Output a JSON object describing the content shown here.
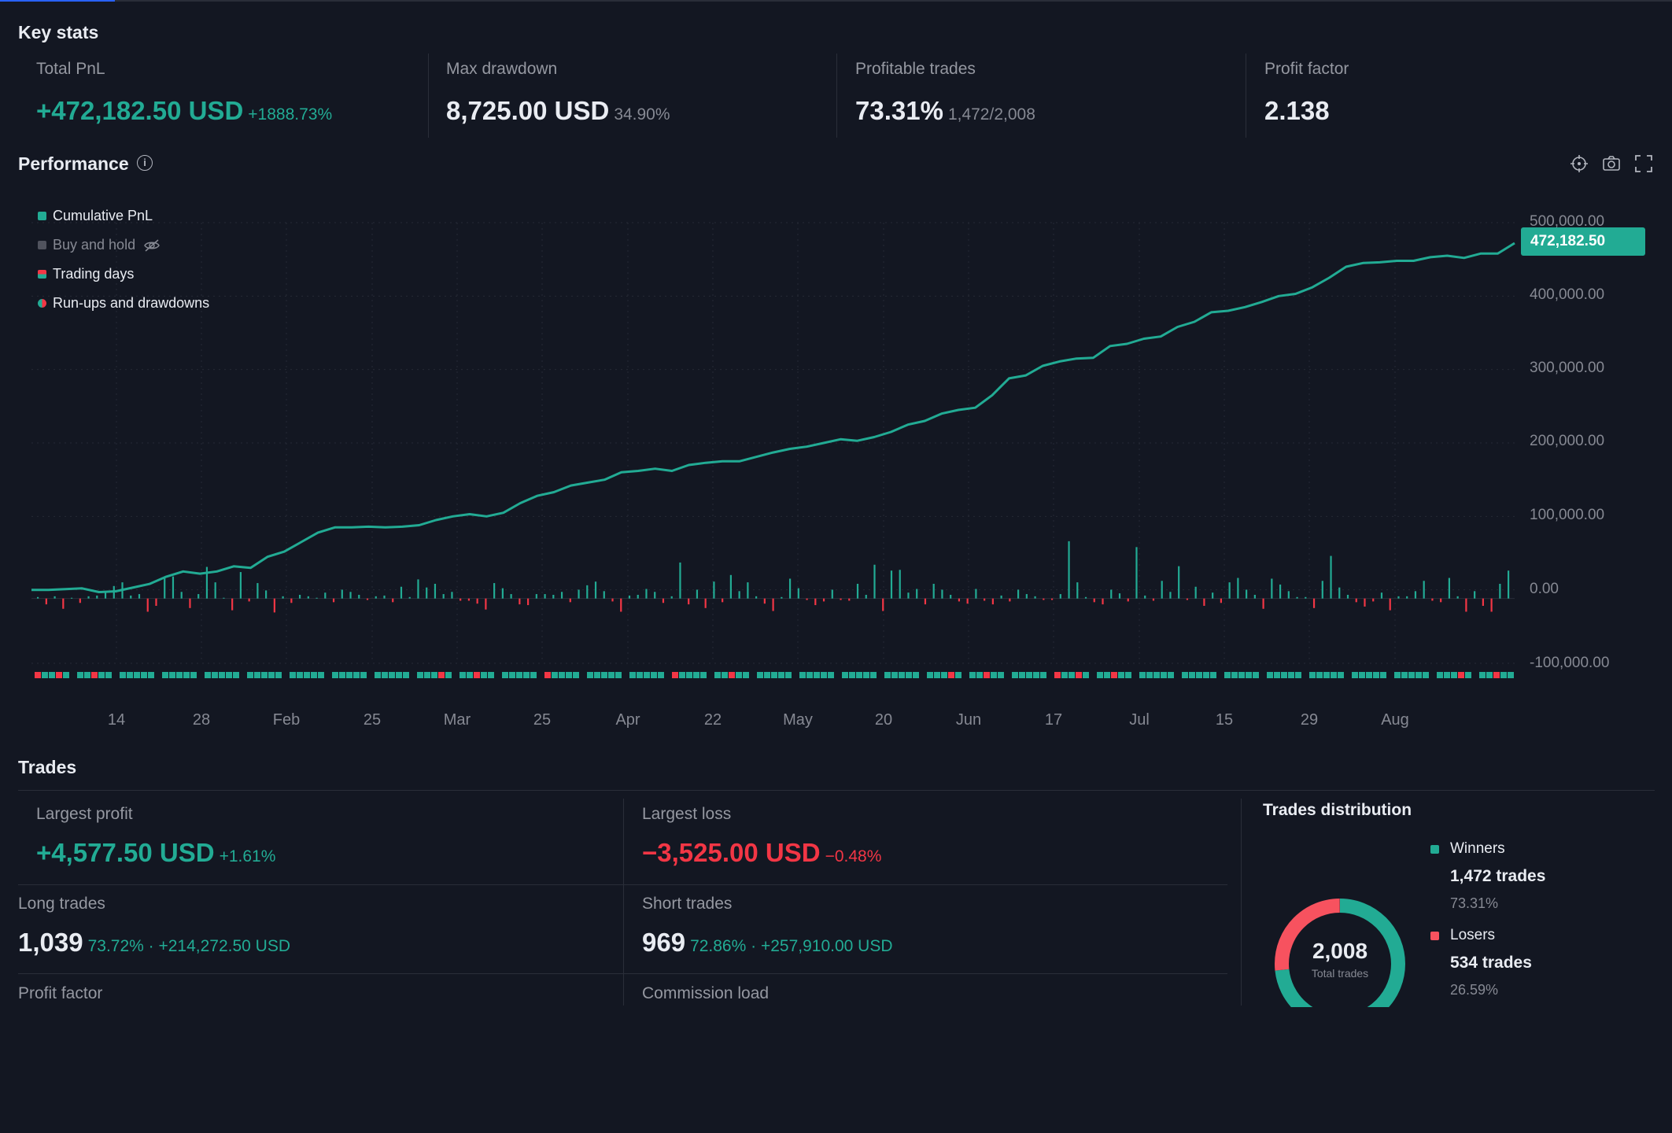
{
  "colors": {
    "accent": "#22ab94",
    "loss": "#f23645",
    "bg": "#131722",
    "grid": "#2a2e39"
  },
  "key_stats": {
    "title": "Key stats",
    "total_pnl": {
      "label": "Total PnL",
      "value": "+472,182.50 USD",
      "sub": "+1888.73%"
    },
    "max_drawdown": {
      "label": "Max drawdown",
      "value": "8,725.00 USD",
      "sub": "34.90%"
    },
    "profitable_trades": {
      "label": "Profitable trades",
      "value": "73.31%",
      "sub": "1,472/2,008"
    },
    "profit_factor": {
      "label": "Profit factor",
      "value": "2.138"
    }
  },
  "performance": {
    "title": "Performance",
    "info_icon": "info-icon",
    "tools": [
      "crosshair-icon",
      "camera-icon",
      "fullscreen-icon"
    ],
    "legend": [
      {
        "label": "Cumulative PnL",
        "color": "#22ab94",
        "hidden": false
      },
      {
        "label": "Buy and hold",
        "color": "#50535e",
        "hidden": true,
        "icon": "eye-off-icon"
      },
      {
        "label": "Trading days",
        "color": "split",
        "hidden": false
      },
      {
        "label": "Run-ups and drawdowns",
        "color": "split",
        "hidden": false
      }
    ],
    "last_value_label": "472,182.50"
  },
  "chart_data": {
    "type": "line",
    "series": [
      {
        "name": "Cumulative PnL",
        "values": [
          0,
          0,
          1000,
          2000,
          -3000,
          -2000,
          3000,
          8000,
          18000,
          25000,
          22000,
          25000,
          32000,
          30000,
          45000,
          52000,
          65000,
          78000,
          85000,
          85000,
          86000,
          85000,
          86000,
          88000,
          95000,
          100000,
          103000,
          100000,
          105000,
          118000,
          128000,
          133000,
          142000,
          146000,
          150000,
          160000,
          162000,
          165000,
          162000,
          170000,
          173000,
          175000,
          175000,
          181000,
          187000,
          192000,
          195000,
          200000,
          205000,
          203000,
          208000,
          215000,
          225000,
          230000,
          240000,
          245000,
          248000,
          265000,
          288000,
          292000,
          305000,
          311000,
          315000,
          316000,
          332000,
          335000,
          342000,
          345000,
          358000,
          365000,
          378000,
          380000,
          385000,
          392000,
          400000,
          403000,
          412000,
          425000,
          440000,
          445000,
          446000,
          448000,
          448000,
          453000,
          455000,
          452000,
          458000,
          458000,
          472182.5
        ]
      }
    ],
    "daily_pnl_bars": [
      2000,
      -8000,
      3000,
      -14000,
      1000,
      -6000,
      3000,
      4000,
      10000,
      17000,
      22000,
      4000,
      6000,
      -18000,
      -10000,
      28000,
      30000,
      9000,
      -13000,
      6000,
      43000,
      22000,
      1000,
      -16000,
      36000,
      -4000,
      21000,
      11000,
      -19000,
      3000,
      -6000,
      5000,
      3000,
      1000,
      8000,
      -5000,
      12000,
      9000,
      5000,
      -2000,
      3000,
      4000,
      -5000,
      16000,
      2000,
      26000,
      15000,
      20000,
      6000,
      9000,
      -3000,
      -3000,
      -7000,
      -15000,
      21000,
      14000,
      6000,
      -8000,
      -9000,
      6000,
      6000,
      5000,
      9000,
      -5000,
      12000,
      18000,
      23000,
      10000,
      -4000,
      -18000,
      4000,
      5000,
      13000,
      9000,
      -6000,
      3000,
      49000,
      -8000,
      12000,
      -13000,
      23000,
      -5000,
      32000,
      10000,
      22000,
      3000,
      -7000,
      -17000,
      2000,
      27000,
      14000,
      -2000,
      -9000,
      -4000,
      12000,
      -2000,
      -3000,
      20000,
      5000,
      46000,
      -17000,
      38000,
      39000,
      8000,
      13000,
      -8000,
      20000,
      12000,
      5000,
      -4000,
      -7000,
      13000,
      -3000,
      -8000,
      4000,
      -4000,
      12000,
      6000,
      3000,
      -2000,
      -2000,
      6000,
      78000,
      22000,
      2000,
      -5000,
      -8000,
      12000,
      7000,
      -4000,
      70000,
      4000,
      -3000,
      24000,
      9000,
      44000,
      -2000,
      16000,
      -10000,
      8000,
      -6000,
      22000,
      28000,
      12000,
      5000,
      -14000,
      27000,
      19000,
      10000,
      2000,
      2000,
      -13000,
      24000,
      58000,
      15000,
      5000,
      -5000,
      -11000,
      -4000,
      8000,
      -16000,
      3000,
      3000,
      10000,
      24000,
      -3000,
      -5000,
      28000,
      3000,
      -18000,
      10000,
      -10000,
      -18000,
      20000,
      38000
    ],
    "trading_days_pattern": "mixed green/red daily markers",
    "x_ticks": [
      "14",
      "28",
      "Feb",
      "25",
      "Mar",
      "25",
      "Apr",
      "22",
      "May",
      "20",
      "Jun",
      "17",
      "Jul",
      "15",
      "29",
      "Aug"
    ],
    "y_ticks": [
      "500,000.00",
      "400,000.00",
      "300,000.00",
      "200,000.00",
      "100,000.00",
      "0.00",
      "-100,000.00"
    ],
    "ylim": [
      -100000,
      500000
    ],
    "grid": true,
    "legend_position": "top-left"
  },
  "trades": {
    "title": "Trades",
    "largest_profit": {
      "label": "Largest profit",
      "value": "+4,577.50 USD",
      "sub": "+1.61%"
    },
    "largest_loss": {
      "label": "Largest loss",
      "value": "−3,525.00 USD",
      "sub": "−0.48%"
    },
    "long_trades": {
      "label": "Long trades",
      "value": "1,039",
      "sub": "73.72% · +214,272.50 USD"
    },
    "short_trades": {
      "label": "Short trades",
      "value": "969",
      "sub": "72.86% · +257,910.00 USD"
    },
    "profit_factor_label": "Profit factor",
    "commission_load_label": "Commission load"
  },
  "distribution": {
    "title": "Trades distribution",
    "total": "2,008",
    "total_label": "Total trades",
    "winners": {
      "label": "Winners",
      "count": "1,472 trades",
      "pct": "73.31%",
      "share": 0.7331,
      "color": "#22ab94"
    },
    "losers": {
      "label": "Losers",
      "count": "534 trades",
      "pct": "26.59%",
      "share": 0.2659,
      "color": "#f7525f"
    }
  }
}
